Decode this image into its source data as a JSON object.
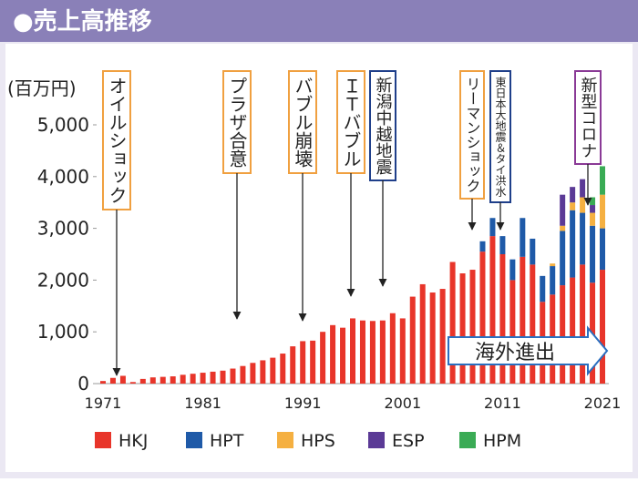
{
  "chart_data": {
    "type": "stacked-bar",
    "title": "●売上高推移",
    "y_label": "(百万円)",
    "categories": [
      "1971",
      null,
      null,
      null,
      null,
      null,
      null,
      null,
      null,
      null,
      "1981",
      null,
      null,
      null,
      null,
      null,
      null,
      null,
      null,
      null,
      "1991",
      null,
      null,
      null,
      null,
      null,
      null,
      null,
      null,
      null,
      "2001",
      null,
      null,
      null,
      null,
      null,
      null,
      null,
      null,
      null,
      "2011",
      null,
      null,
      null,
      null,
      null,
      null,
      null,
      null,
      null,
      "2021"
    ],
    "series": [
      {
        "name": "HKJ",
        "color": "#e8352a",
        "values": [
          50,
          110,
          150,
          30,
          90,
          120,
          130,
          140,
          170,
          190,
          210,
          230,
          250,
          290,
          340,
          400,
          450,
          500,
          580,
          720,
          820,
          830,
          1000,
          1130,
          1080,
          1260,
          1220,
          1210,
          1220,
          1360,
          1260,
          1680,
          1920,
          1760,
          1830,
          2350,
          2130,
          2200,
          2550,
          2850,
          2500,
          2000,
          2450,
          2300,
          1580,
          1720,
          1900,
          2050,
          2300,
          1950,
          2200
        ]
      },
      {
        "name": "HPT",
        "color": "#1f5aa8",
        "values": [
          null,
          null,
          null,
          null,
          null,
          null,
          null,
          null,
          null,
          null,
          null,
          null,
          null,
          null,
          null,
          null,
          null,
          null,
          null,
          null,
          null,
          null,
          null,
          null,
          null,
          null,
          null,
          null,
          null,
          null,
          null,
          null,
          null,
          null,
          null,
          null,
          null,
          null,
          200,
          350,
          350,
          400,
          750,
          500,
          500,
          550,
          1050,
          1300,
          1000,
          1100,
          800
        ]
      },
      {
        "name": "HPS",
        "color": "#f5b041",
        "values": [
          null,
          null,
          null,
          null,
          null,
          null,
          null,
          null,
          null,
          null,
          null,
          null,
          null,
          null,
          null,
          null,
          null,
          null,
          null,
          null,
          null,
          null,
          null,
          null,
          null,
          null,
          null,
          null,
          null,
          null,
          null,
          null,
          null,
          null,
          null,
          null,
          null,
          null,
          null,
          null,
          null,
          null,
          null,
          null,
          null,
          50,
          100,
          150,
          300,
          250,
          650
        ]
      },
      {
        "name": "ESP",
        "color": "#5b3a96",
        "values": [
          null,
          null,
          null,
          null,
          null,
          null,
          null,
          null,
          null,
          null,
          null,
          null,
          null,
          null,
          null,
          null,
          null,
          null,
          null,
          null,
          null,
          null,
          null,
          null,
          null,
          null,
          null,
          null,
          null,
          null,
          null,
          null,
          null,
          null,
          null,
          null,
          null,
          null,
          null,
          null,
          null,
          null,
          null,
          null,
          null,
          null,
          600,
          300,
          350,
          150,
          null
        ]
      },
      {
        "name": "HPM",
        "color": "#3aab55",
        "values": [
          null,
          null,
          null,
          null,
          null,
          null,
          null,
          null,
          null,
          null,
          null,
          null,
          null,
          null,
          null,
          null,
          null,
          null,
          null,
          null,
          null,
          null,
          null,
          null,
          null,
          null,
          null,
          null,
          null,
          null,
          null,
          null,
          null,
          null,
          null,
          null,
          null,
          null,
          null,
          null,
          null,
          null,
          null,
          null,
          null,
          null,
          null,
          null,
          null,
          150,
          550
        ]
      }
    ],
    "ylim": [
      0,
      5000
    ],
    "yticks": [
      0,
      {
        "value": 1000,
        "label": "1,000"
      },
      {
        "value": 2000,
        "label": "2,000"
      },
      {
        "value": 3000,
        "label": "3,000"
      },
      {
        "value": 4000,
        "label": "4,000"
      },
      {
        "value": 5000,
        "label": "5,000"
      }
    ],
    "grid": false,
    "legend": "bottom",
    "annotations": [
      {
        "text": "オイルショック",
        "color": "#f0a040"
      },
      {
        "text": "プラザ合意",
        "color": "#f0a040"
      },
      {
        "text": "バブル崩壊",
        "color": "#f0a040"
      },
      {
        "text": "ＩＴバブル",
        "color": "#f0a040"
      },
      {
        "text": "新潟中越地震",
        "color": "#1f3f8a"
      },
      {
        "text": "リーマンショック",
        "color": "#f0a040"
      },
      {
        "text": "東日本大地震＆タイ洪水",
        "color": "#1f3f8a"
      },
      {
        "text": "新型コロナ",
        "color": "#8a3a96"
      }
    ],
    "overseas_label": "海外進出"
  }
}
